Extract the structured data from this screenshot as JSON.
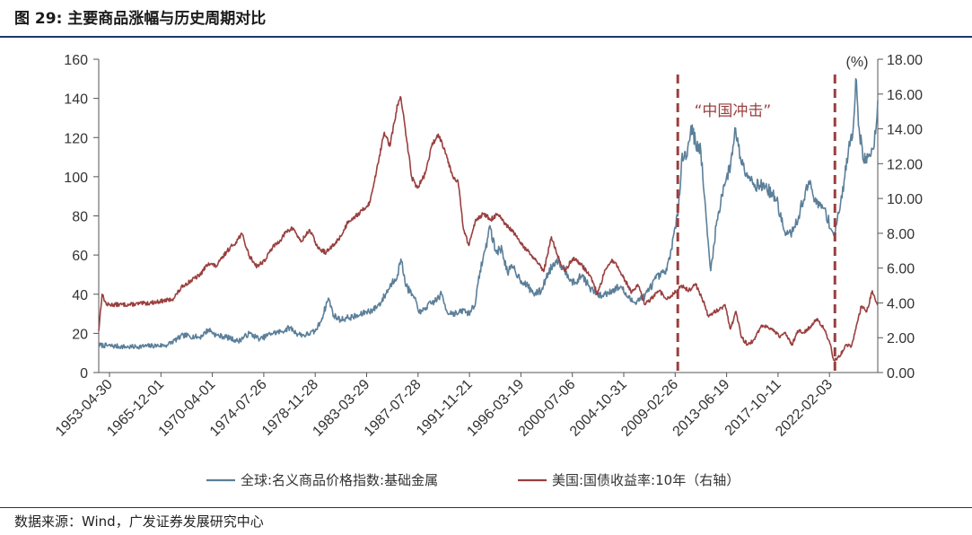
{
  "header": {
    "title": "图 29:  主要商品涨幅与历史周期对比"
  },
  "footer": {
    "source": "数据来源：Wind，广发证券发展研究中心"
  },
  "colors": {
    "global_index": "#5b7f99",
    "us_10y": "#9a3f3f",
    "divider": "#9a3f3f",
    "title_rule": "#1f3864"
  },
  "chart_data": {
    "type": "line",
    "title": "主要商品涨幅与历史周期对比",
    "x_tick_labels": [
      "1953-04-30",
      "1965-12-01",
      "1970-04-01",
      "1974-07-26",
      "1978-11-28",
      "1983-03-29",
      "1987-07-28",
      "1991-11-21",
      "1996-03-19",
      "2000-07-06",
      "2004-10-31",
      "2009-02-26",
      "2013-06-19",
      "2017-10-11",
      "2022-02-03"
    ],
    "y_left": {
      "ylim": [
        0,
        160
      ],
      "ticks": [
        "0",
        "20",
        "40",
        "60",
        "80",
        "100",
        "120",
        "140",
        "160"
      ]
    },
    "y_right": {
      "ylim": [
        0,
        18
      ],
      "unit": "(%)",
      "ticks": [
        "0.00",
        "2.00",
        "4.00",
        "6.00",
        "8.00",
        "10.00",
        "12.00",
        "14.00",
        "16.00",
        "18.00"
      ]
    },
    "x_range": [
      1953.3,
      2024.2
    ],
    "series": [
      {
        "name": "全球:名义商品价格指数:基础金属",
        "axis": "left",
        "points": [
          [
            1953.3,
            14
          ],
          [
            1956,
            13
          ],
          [
            1959.5,
            14
          ],
          [
            1961,
            19
          ],
          [
            1962.5,
            18
          ],
          [
            1963.3,
            22
          ],
          [
            1964,
            19
          ],
          [
            1965,
            18
          ],
          [
            1966,
            16
          ],
          [
            1967,
            20
          ],
          [
            1968,
            17
          ],
          [
            1969,
            20
          ],
          [
            1970,
            21
          ],
          [
            1970.7,
            23
          ],
          [
            1971.3,
            20
          ],
          [
            1972,
            19
          ],
          [
            1973,
            21
          ],
          [
            1973.5,
            26
          ],
          [
            1974.2,
            38
          ],
          [
            1974.7,
            29
          ],
          [
            1975.3,
            27
          ],
          [
            1976,
            28
          ],
          [
            1977,
            29
          ],
          [
            1977.6,
            31
          ],
          [
            1978.3,
            32
          ],
          [
            1979,
            36
          ],
          [
            1980,
            46
          ],
          [
            1980.5,
            50
          ],
          [
            1980.8,
            58
          ],
          [
            1981.3,
            44
          ],
          [
            1982,
            38
          ],
          [
            1982.6,
            30
          ],
          [
            1983,
            33
          ],
          [
            1984,
            37
          ],
          [
            1984.5,
            40
          ],
          [
            1985,
            31
          ],
          [
            1986,
            30
          ],
          [
            1986.5,
            32
          ],
          [
            1987,
            30
          ],
          [
            1987.6,
            36
          ],
          [
            1988,
            52
          ],
          [
            1988.5,
            63
          ],
          [
            1988.9,
            75
          ],
          [
            1989.4,
            62
          ],
          [
            1990,
            63
          ],
          [
            1990.5,
            51
          ],
          [
            1991,
            54
          ],
          [
            1991.6,
            48
          ],
          [
            1992,
            46
          ],
          [
            1993,
            40
          ],
          [
            1993.6,
            42
          ],
          [
            1994.2,
            51
          ],
          [
            1995,
            58
          ],
          [
            1996,
            50
          ],
          [
            1996.6,
            45
          ],
          [
            1997.3,
            50
          ],
          [
            1998,
            43
          ],
          [
            1999,
            39
          ],
          [
            2000,
            42
          ],
          [
            2000.8,
            44
          ],
          [
            2001.5,
            38
          ],
          [
            2002,
            36
          ],
          [
            2003,
            39
          ],
          [
            2004,
            48
          ],
          [
            2005,
            52
          ],
          [
            2006,
            80
          ],
          [
            2006.4,
            112
          ],
          [
            2006.8,
            110
          ],
          [
            2007.2,
            126
          ],
          [
            2007.6,
            118
          ],
          [
            2008.1,
            113
          ],
          [
            2008.7,
            70
          ],
          [
            2009.0,
            52
          ],
          [
            2009.5,
            75
          ],
          [
            2010.2,
            96
          ],
          [
            2010.8,
            105
          ],
          [
            2011.2,
            125
          ],
          [
            2011.7,
            110
          ],
          [
            2012.3,
            102
          ],
          [
            2013,
            96
          ],
          [
            2014,
            95
          ],
          [
            2015,
            88
          ],
          [
            2015.8,
            70
          ],
          [
            2016.5,
            72
          ],
          [
            2017,
            80
          ],
          [
            2017.6,
            92
          ],
          [
            2018.1,
            97
          ],
          [
            2018.6,
            86
          ],
          [
            2019.3,
            84
          ],
          [
            2020.2,
            70
          ],
          [
            2020.7,
            82
          ],
          [
            2021.2,
            100
          ],
          [
            2021.6,
            118
          ],
          [
            2021.9,
            120
          ],
          [
            2022.2,
            150
          ],
          [
            2022.5,
            125
          ],
          [
            2022.9,
            108
          ],
          [
            2023.3,
            110
          ],
          [
            2023.7,
            114
          ],
          [
            2024.0,
            122
          ],
          [
            2024.2,
            139
          ]
        ]
      },
      {
        "name": "美国:国债收益率:10年（右轴）",
        "axis": "right",
        "points": [
          [
            1953.3,
            2.4
          ],
          [
            1953.6,
            4.5
          ],
          [
            1954,
            3.9
          ],
          [
            1956,
            3.9
          ],
          [
            1958,
            4.0
          ],
          [
            1960,
            4.2
          ],
          [
            1961,
            5.0
          ],
          [
            1962.5,
            5.6
          ],
          [
            1963.3,
            6.3
          ],
          [
            1964,
            6.1
          ],
          [
            1965,
            7.0
          ],
          [
            1965.8,
            7.5
          ],
          [
            1966.3,
            8.0
          ],
          [
            1967,
            6.7
          ],
          [
            1967.7,
            6.1
          ],
          [
            1968.5,
            6.5
          ],
          [
            1969,
            7.1
          ],
          [
            1969.8,
            7.6
          ],
          [
            1970.4,
            8.1
          ],
          [
            1971,
            8.3
          ],
          [
            1971.7,
            7.5
          ],
          [
            1972.5,
            8.2
          ],
          [
            1973.3,
            7.1
          ],
          [
            1974,
            6.9
          ],
          [
            1974.8,
            7.4
          ],
          [
            1975.5,
            8.0
          ],
          [
            1976,
            8.7
          ],
          [
            1976.7,
            9.0
          ],
          [
            1977.3,
            9.3
          ],
          [
            1978,
            9.8
          ],
          [
            1978.7,
            12.0
          ],
          [
            1979.3,
            13.8
          ],
          [
            1979.8,
            13.0
          ],
          [
            1980.5,
            15.4
          ],
          [
            1980.8,
            15.8
          ],
          [
            1981.3,
            13.5
          ],
          [
            1981.8,
            11.2
          ],
          [
            1982.3,
            10.6
          ],
          [
            1983,
            11.4
          ],
          [
            1983.6,
            13.0
          ],
          [
            1984.2,
            13.7
          ],
          [
            1984.8,
            12.8
          ],
          [
            1985.5,
            11.3
          ],
          [
            1986,
            11.0
          ],
          [
            1986.5,
            8.2
          ],
          [
            1987,
            7.3
          ],
          [
            1987.6,
            8.8
          ],
          [
            1988.3,
            9.1
          ],
          [
            1989,
            8.8
          ],
          [
            1989.6,
            9.1
          ],
          [
            1990.3,
            8.5
          ],
          [
            1991,
            8.1
          ],
          [
            1991.6,
            7.5
          ],
          [
            1992.3,
            7.0
          ],
          [
            1993,
            6.5
          ],
          [
            1993.8,
            5.8
          ],
          [
            1994.5,
            7.8
          ],
          [
            1995,
            6.8
          ],
          [
            1995.7,
            5.8
          ],
          [
            1996.5,
            6.6
          ],
          [
            1997.2,
            6.2
          ],
          [
            1998,
            5.6
          ],
          [
            1998.7,
            4.5
          ],
          [
            1999.3,
            5.7
          ],
          [
            2000,
            6.5
          ],
          [
            2000.6,
            6.0
          ],
          [
            2001.2,
            5.3
          ],
          [
            2001.8,
            4.6
          ],
          [
            2002.4,
            5.0
          ],
          [
            2003,
            3.9
          ],
          [
            2003.7,
            4.3
          ],
          [
            2004.3,
            4.7
          ],
          [
            2005,
            4.2
          ],
          [
            2005.6,
            4.5
          ],
          [
            2006.3,
            5.0
          ],
          [
            2007,
            4.7
          ],
          [
            2007.6,
            5.1
          ],
          [
            2008.2,
            4.3
          ],
          [
            2008.8,
            3.2
          ],
          [
            2009.3,
            3.5
          ],
          [
            2009.8,
            3.6
          ],
          [
            2010.3,
            3.9
          ],
          [
            2010.8,
            2.5
          ],
          [
            2011.3,
            3.5
          ],
          [
            2011.8,
            2.0
          ],
          [
            2012.4,
            1.6
          ],
          [
            2013,
            1.9
          ],
          [
            2013.6,
            2.7
          ],
          [
            2014.2,
            2.6
          ],
          [
            2014.8,
            2.4
          ],
          [
            2015.3,
            2.0
          ],
          [
            2015.8,
            2.3
          ],
          [
            2016.4,
            1.6
          ],
          [
            2016.9,
            2.4
          ],
          [
            2017.4,
            2.3
          ],
          [
            2018,
            2.6
          ],
          [
            2018.7,
            3.1
          ],
          [
            2019.3,
            2.5
          ],
          [
            2019.8,
            1.8
          ],
          [
            2020.2,
            0.7
          ],
          [
            2020.7,
            0.9
          ],
          [
            2021.3,
            1.6
          ],
          [
            2021.8,
            1.5
          ],
          [
            2022.3,
            2.8
          ],
          [
            2022.7,
            3.8
          ],
          [
            2023.2,
            3.5
          ],
          [
            2023.7,
            4.7
          ],
          [
            2024.0,
            4.1
          ],
          [
            2024.2,
            3.9
          ]
        ]
      }
    ],
    "vertical_markers": [
      2006.0,
      2020.3
    ],
    "annotations": [
      {
        "text": "“中国冲击”",
        "x": 2011.0
      }
    ],
    "legend": [
      "全球:名义商品价格指数:基础金属",
      "美国:国债收益率:10年（右轴）"
    ],
    "legend_position": "bottom",
    "grid": false
  }
}
